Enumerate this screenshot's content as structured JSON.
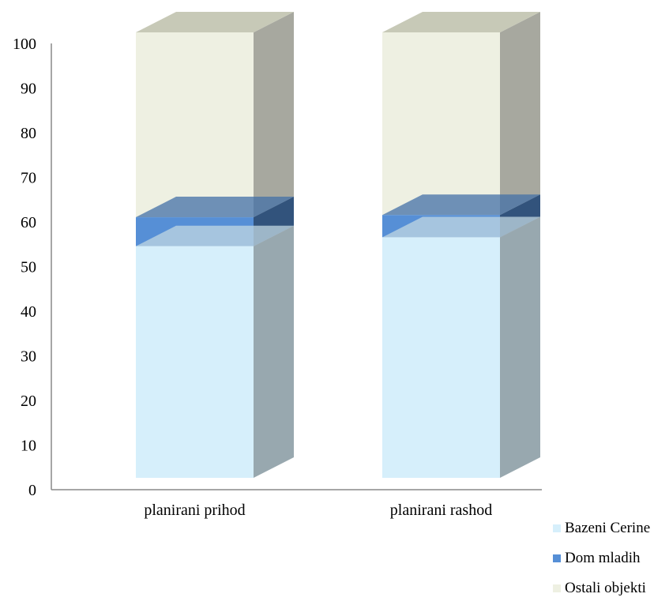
{
  "chart_data": {
    "type": "bar",
    "stacked": true,
    "three_d": true,
    "categories": [
      "planirani prihod",
      "planirani rashod"
    ],
    "series": [
      {
        "name": "Bazeni Cerine",
        "color": "#d6effb",
        "values": [
          52,
          54
        ]
      },
      {
        "name": "Dom mladih",
        "color": "#568fd6",
        "values": [
          6.5,
          5
        ]
      },
      {
        "name": "Ostali objekti",
        "color": "#eef0e2",
        "values": [
          41.5,
          41
        ]
      }
    ],
    "ylim": [
      0,
      100
    ],
    "yticks": [
      0,
      10,
      20,
      30,
      40,
      50,
      60,
      70,
      80,
      90,
      100
    ],
    "title": "",
    "xlabel": "",
    "ylabel": "",
    "grid": false,
    "legend_position": "bottom-right"
  }
}
